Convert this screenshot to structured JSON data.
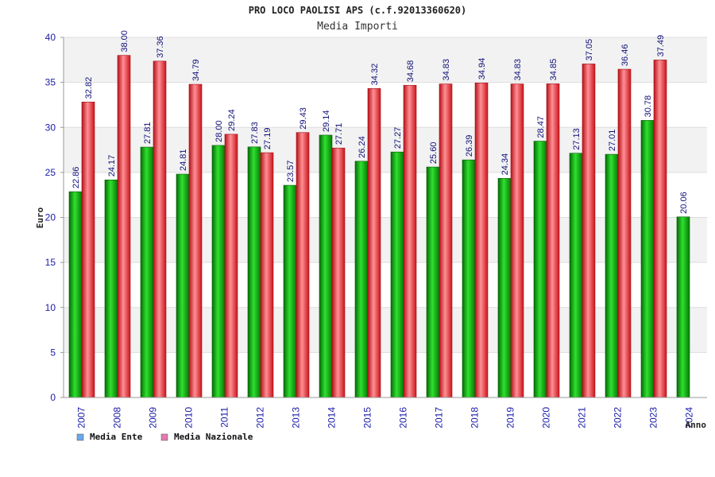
{
  "chart_data": {
    "type": "bar",
    "title": "PRO LOCO PAOLISI APS (c.f.92013360620)",
    "subtitle": "Media Importi",
    "xlabel": "Anno",
    "ylabel": "Euro",
    "ylim": [
      0,
      40
    ],
    "yticks": [
      0,
      5,
      10,
      15,
      20,
      25,
      30,
      35,
      40
    ],
    "grid": true,
    "legend_position": "bottom-left",
    "categories": [
      "2007",
      "2008",
      "2009",
      "2010",
      "2011",
      "2012",
      "2013",
      "2014",
      "2015",
      "2016",
      "2017",
      "2018",
      "2019",
      "2020",
      "2021",
      "2022",
      "2023",
      "2024"
    ],
    "series": [
      {
        "name": "Media Ente",
        "legend_color": "#6aa8e8",
        "bar_color": "#0fa60f",
        "values": [
          22.86,
          24.17,
          27.81,
          24.81,
          28.0,
          27.83,
          23.57,
          29.14,
          26.24,
          27.27,
          25.6,
          26.39,
          24.34,
          28.47,
          27.13,
          27.01,
          30.78,
          20.06
        ],
        "labels": [
          "22.86",
          "24.17",
          "27.81",
          "24.81",
          "28.00",
          "27.83",
          "23.57",
          "29.14",
          "26.24",
          "27.27",
          "25.60",
          "26.39",
          "24.34",
          "28.47",
          "27.13",
          "27.01",
          "30.78",
          "20.06"
        ]
      },
      {
        "name": "Media Nazionale",
        "legend_color": "#e27ab0",
        "bar_color": "#e8222a",
        "values": [
          32.82,
          38.0,
          37.36,
          34.79,
          29.24,
          27.19,
          29.43,
          27.71,
          34.32,
          34.68,
          34.83,
          34.94,
          34.83,
          34.85,
          37.05,
          36.46,
          37.49,
          null
        ],
        "labels": [
          "32.82",
          "38.00",
          "37.36",
          "34.79",
          "29.24",
          "27.19",
          "29.43",
          "27.71",
          "34.32",
          "34.68",
          "34.83",
          "34.94",
          "34.83",
          "34.85",
          "37.05",
          "36.46",
          "37.49",
          ""
        ]
      }
    ]
  }
}
